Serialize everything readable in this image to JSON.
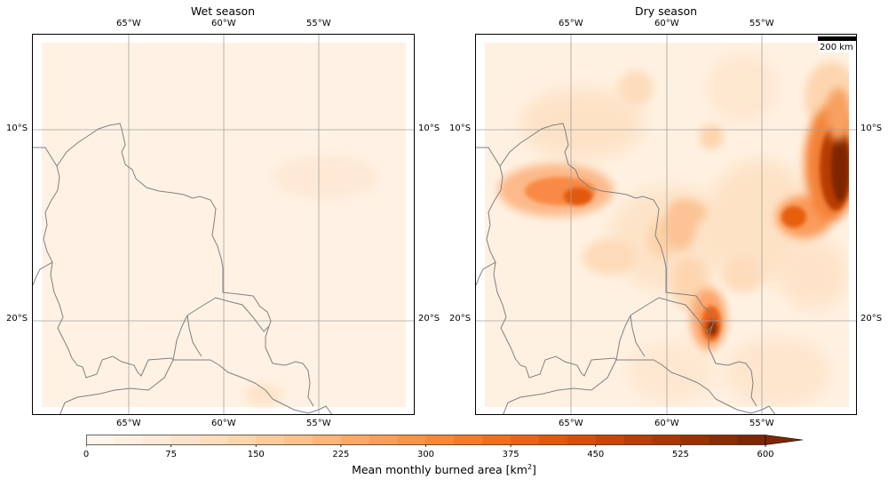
{
  "panels": [
    {
      "title": "Wet season",
      "lon_labels": [
        "65°W",
        "60°W",
        "55°W"
      ],
      "lat_labels": [
        "10°S",
        "20°S"
      ]
    },
    {
      "title": "Dry season",
      "lon_labels": [
        "65°W",
        "60°W",
        "55°W"
      ],
      "lat_labels": [
        "10°S",
        "20°S"
      ],
      "scale_bar": "200 km"
    }
  ],
  "colorbar": {
    "label_prefix": "Mean monthly burned area [km",
    "label_sup": "2",
    "label_suffix": "]",
    "ticks": [
      "0",
      "75",
      "150",
      "225",
      "300",
      "375",
      "450",
      "525",
      "600"
    ],
    "colormap": "Oranges",
    "extend": "max",
    "colors": [
      "#fff5eb",
      "#fee8d3",
      "#fdd9b4",
      "#fdc28c",
      "#fda762",
      "#fb8d3d",
      "#f2701d",
      "#e25609",
      "#c44103",
      "#9f3303",
      "#7f2704"
    ]
  },
  "colors": {
    "border_line": "#808080",
    "gridline": "#a0a0a0",
    "ocean_bg": "#ffffff"
  }
}
